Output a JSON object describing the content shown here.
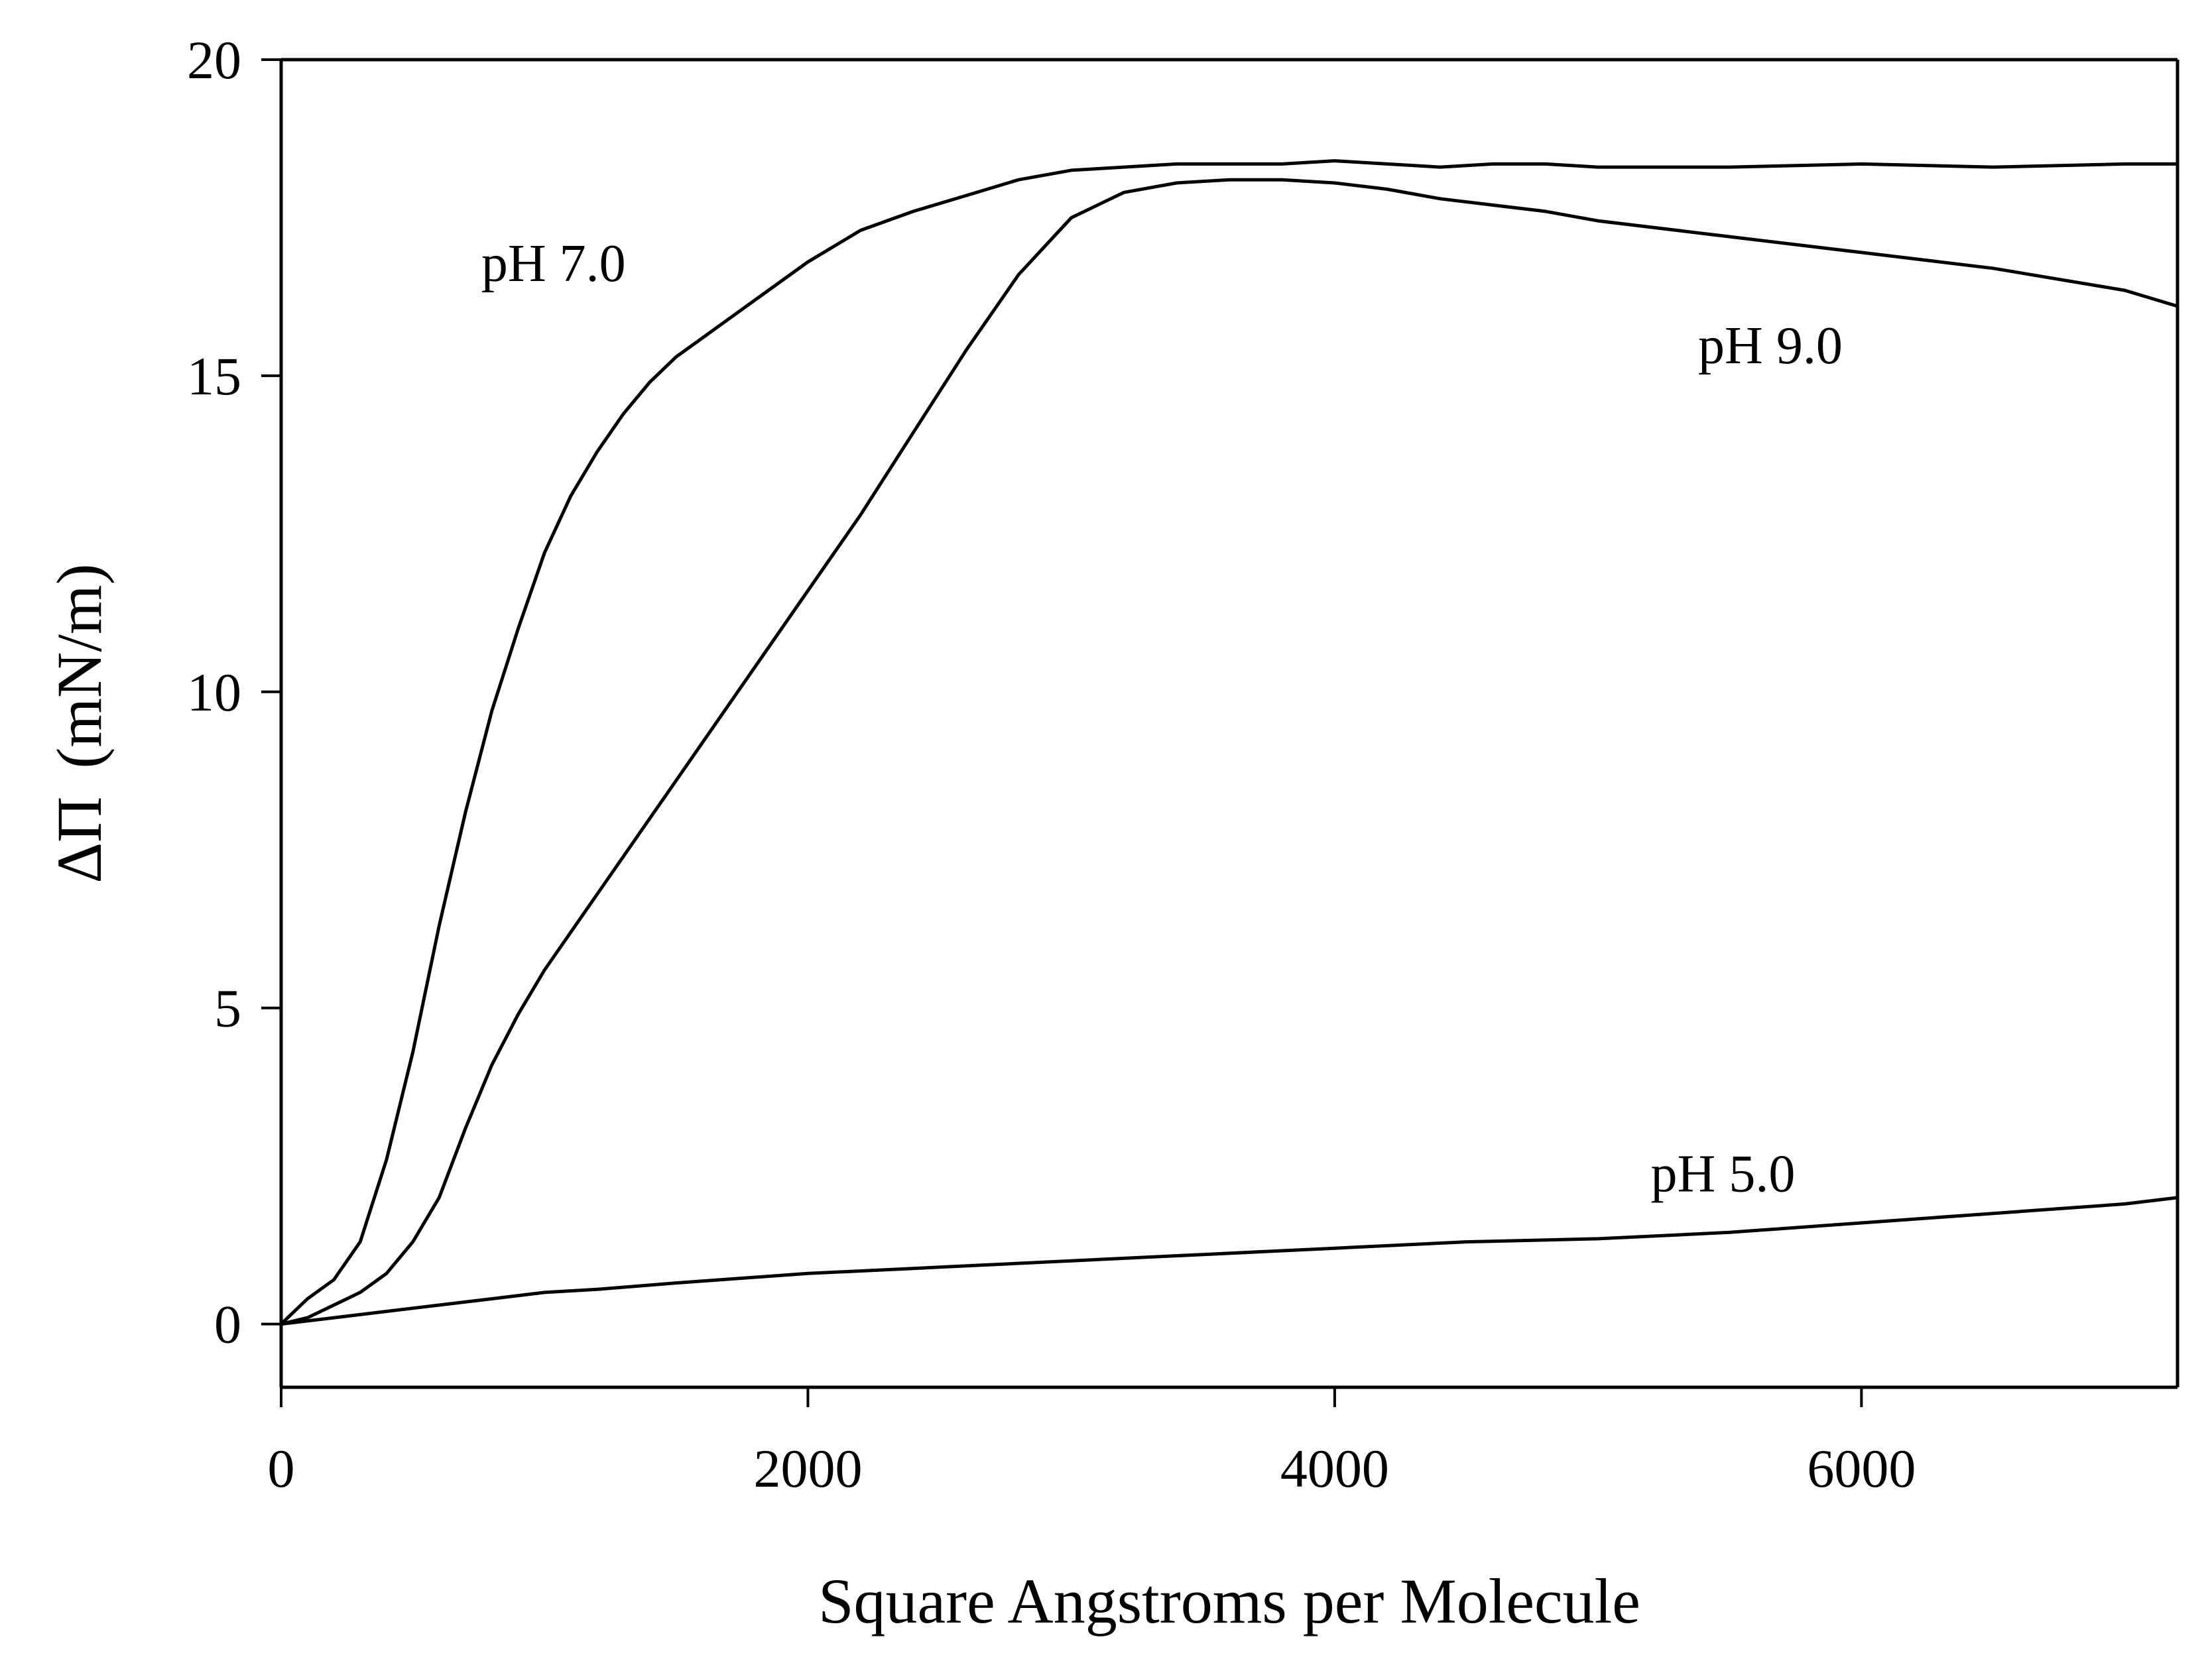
{
  "chart_data": {
    "type": "line",
    "title": "",
    "xlabel": "Square Angstroms per Molecule",
    "ylabel_symbol": "ΔΠ",
    "ylabel_unit": "(mN/m)",
    "xlim": [
      0,
      7200
    ],
    "ylim": [
      -1,
      20
    ],
    "xticks": [
      0,
      2000,
      4000,
      6000
    ],
    "yticks": [
      0,
      5,
      10,
      15,
      20
    ],
    "xtick_labels": [
      "0",
      "2000",
      "4000",
      "6000"
    ],
    "ytick_labels": [
      "0",
      "5",
      "10",
      "15",
      "20"
    ],
    "grid": false,
    "colors": {
      "line": "#000000",
      "axis": "#000000",
      "background": "#ffffff"
    },
    "series": [
      {
        "name": "pH 7.0",
        "label": "pH 7.0",
        "label_at": [
          760,
          16.5
        ],
        "x": [
          0,
          100,
          200,
          300,
          400,
          500,
          600,
          700,
          800,
          900,
          1000,
          1100,
          1200,
          1300,
          1400,
          1500,
          1600,
          1800,
          2000,
          2200,
          2400,
          2600,
          2800,
          3000,
          3200,
          3400,
          3600,
          3800,
          4000,
          4200,
          4400,
          4600,
          4800,
          5000,
          5500,
          6000,
          6500,
          7000,
          7200
        ],
        "y": [
          0,
          0.4,
          0.7,
          1.3,
          2.6,
          4.3,
          6.3,
          8.1,
          9.7,
          11.0,
          12.2,
          13.1,
          13.8,
          14.4,
          14.9,
          15.3,
          15.6,
          16.2,
          16.8,
          17.3,
          17.6,
          17.85,
          18.1,
          18.25,
          18.3,
          18.35,
          18.35,
          18.35,
          18.4,
          18.35,
          18.3,
          18.35,
          18.35,
          18.3,
          18.3,
          18.35,
          18.3,
          18.35,
          18.35
        ]
      },
      {
        "name": "pH 9.0",
        "label": "pH 9.0",
        "label_at": [
          5380,
          15.2
        ],
        "x": [
          0,
          100,
          200,
          300,
          400,
          500,
          600,
          700,
          800,
          900,
          1000,
          1200,
          1400,
          1600,
          1800,
          2000,
          2200,
          2400,
          2600,
          2800,
          3000,
          3200,
          3400,
          3600,
          3800,
          4000,
          4200,
          4400,
          4600,
          4800,
          5000,
          5500,
          6000,
          6500,
          7000,
          7200
        ],
        "y": [
          0,
          0.1,
          0.3,
          0.5,
          0.8,
          1.3,
          2.0,
          3.1,
          4.1,
          4.9,
          5.6,
          6.8,
          8.0,
          9.2,
          10.4,
          11.6,
          12.8,
          14.1,
          15.4,
          16.6,
          17.5,
          17.9,
          18.05,
          18.1,
          18.1,
          18.05,
          17.95,
          17.8,
          17.7,
          17.6,
          17.45,
          17.2,
          16.95,
          16.7,
          16.35,
          16.1
        ]
      },
      {
        "name": "pH 5.0",
        "label": "pH 5.0",
        "label_at": [
          5200,
          2.1
        ],
        "x": [
          0,
          200,
          400,
          600,
          800,
          1000,
          1200,
          1500,
          2000,
          2500,
          3000,
          3500,
          4000,
          4500,
          5000,
          5500,
          6000,
          6500,
          7000,
          7200
        ],
        "y": [
          0,
          0.1,
          0.2,
          0.3,
          0.4,
          0.5,
          0.55,
          0.65,
          0.8,
          0.9,
          1.0,
          1.1,
          1.2,
          1.3,
          1.35,
          1.45,
          1.6,
          1.75,
          1.9,
          2.0
        ]
      }
    ]
  }
}
